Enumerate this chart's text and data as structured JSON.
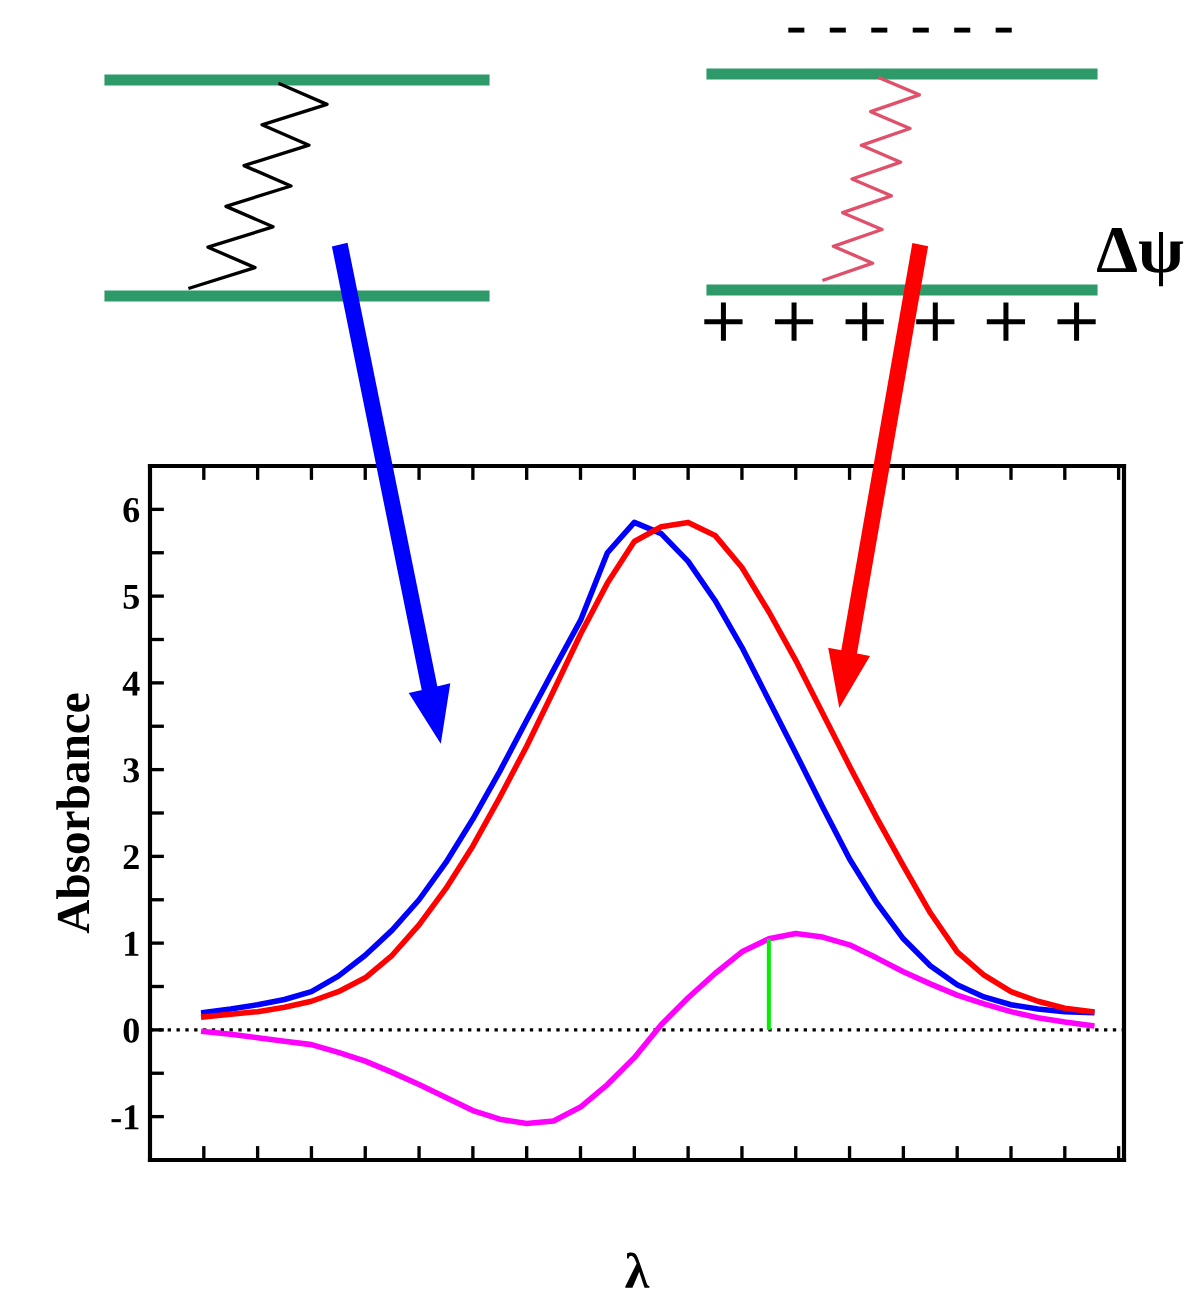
{
  "chart_data": {
    "type": "line",
    "xlabel": "λ",
    "ylabel": "Absorbance",
    "annotations": [
      "- - - - - -",
      "+ + + + + +",
      "Δψ"
    ],
    "categories": [
      null,
      null,
      null,
      null,
      null,
      null,
      null,
      null,
      null,
      null,
      null,
      null,
      null,
      null,
      null,
      null,
      null,
      null,
      null,
      null,
      null,
      null,
      null,
      null,
      null,
      null,
      null,
      null,
      null,
      null,
      null,
      null,
      null,
      null,
      null
    ],
    "ylim": [
      -1.5,
      6.5
    ],
    "yticks": [
      -1,
      0,
      1,
      2,
      3,
      4,
      5,
      6
    ],
    "ref_lines": [
      {
        "axis": "y",
        "value": 0,
        "label": null,
        "color": "#000000",
        "line_style": "dotted"
      }
    ],
    "series": [
      {
        "color": "#0000ff",
        "values": [
          0.2,
          0.24,
          0.29,
          0.35,
          0.44,
          0.62,
          0.86,
          1.15,
          1.5,
          1.93,
          2.43,
          2.98,
          3.57,
          4.15,
          4.72,
          5.5,
          5.85,
          5.72,
          5.4,
          4.95,
          4.41,
          3.8,
          3.19,
          2.57,
          1.97,
          1.47,
          1.05,
          0.74,
          0.52,
          0.38,
          0.29,
          0.24,
          0.21,
          0.2,
          null
        ]
      },
      {
        "color": "#ff0000",
        "values": [
          0.15,
          0.18,
          0.21,
          0.26,
          0.33,
          0.44,
          0.6,
          0.86,
          1.21,
          1.63,
          2.12,
          2.68,
          3.27,
          3.91,
          4.56,
          5.15,
          5.63,
          5.8,
          5.85,
          5.7,
          5.33,
          4.82,
          4.26,
          3.65,
          3.04,
          2.45,
          1.89,
          1.35,
          0.9,
          0.63,
          0.44,
          0.33,
          0.25,
          0.21,
          null
        ]
      },
      {
        "color": "#ff00ff",
        "values": [
          -0.02,
          -0.05,
          -0.09,
          -0.13,
          -0.17,
          -0.26,
          -0.36,
          -0.49,
          -0.63,
          -0.78,
          -0.93,
          -1.03,
          -1.08,
          -1.05,
          -0.89,
          -0.63,
          -0.32,
          0.06,
          0.37,
          0.65,
          0.9,
          1.05,
          1.11,
          1.07,
          0.98,
          0.83,
          0.67,
          0.53,
          0.4,
          0.3,
          0.21,
          0.14,
          0.09,
          0.05,
          null
        ]
      },
      {
        "type": "bar",
        "color": "#00ee00",
        "values": [
          null,
          null,
          null,
          null,
          null,
          null,
          null,
          null,
          null,
          null,
          null,
          null,
          null,
          null,
          null,
          null,
          null,
          null,
          null,
          null,
          null,
          1.05,
          null,
          null,
          null,
          null,
          null,
          null,
          null,
          null,
          null,
          null,
          null,
          null,
          null
        ]
      }
    ]
  }
}
